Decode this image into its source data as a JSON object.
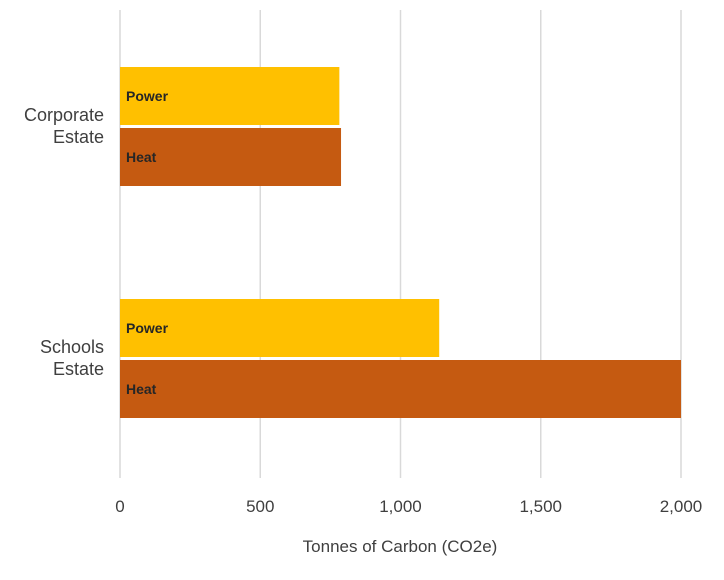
{
  "chart_data": {
    "type": "bar",
    "orientation": "horizontal",
    "title": "",
    "xlabel": "Tonnes of Carbon (CO2e)",
    "ylabel": "",
    "xlim": [
      0,
      2000
    ],
    "ticks": [
      0,
      500,
      1000,
      1500,
      2000
    ],
    "tick_labels": [
      "0",
      "500",
      "1,000",
      "1,500",
      "2,000"
    ],
    "grid": true,
    "legend": "none",
    "categories": [
      {
        "label_lines": [
          "Corporate",
          "Estate"
        ]
      },
      {
        "label_lines": [
          "Schools",
          "Estate"
        ]
      }
    ],
    "series": [
      {
        "name": "Power",
        "color": "#ffc000",
        "values": [
          782,
          1138
        ]
      },
      {
        "name": "Heat",
        "color": "#c55a11",
        "values": [
          788,
          2000
        ]
      }
    ]
  }
}
